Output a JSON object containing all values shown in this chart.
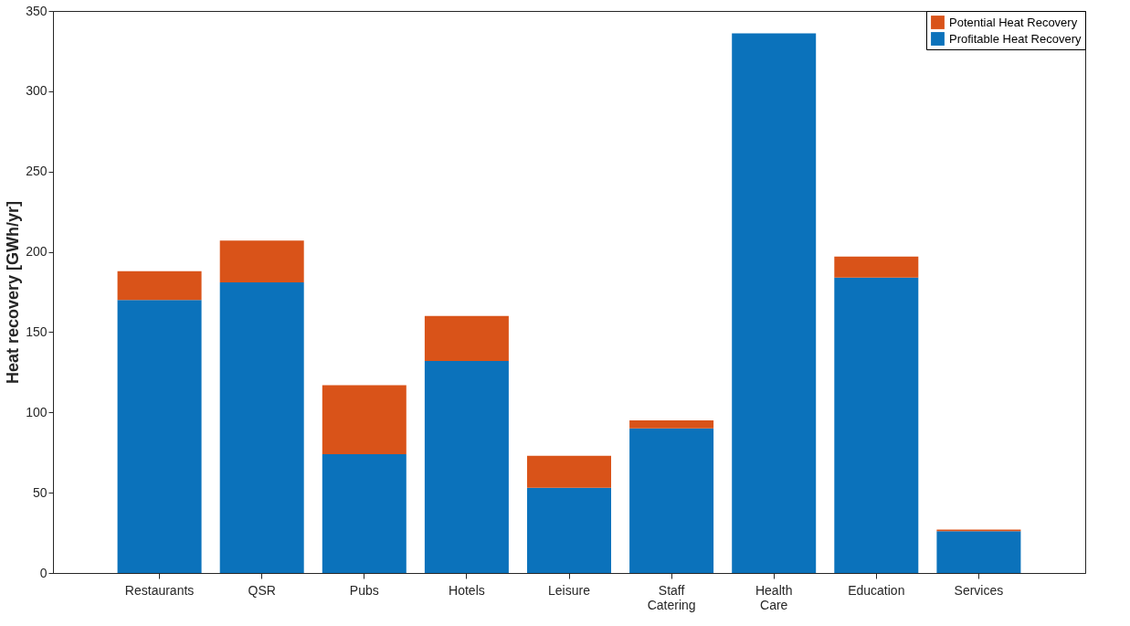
{
  "chart_data": {
    "type": "bar",
    "stacked": true,
    "categories": [
      "Restaurants",
      "QSR",
      "Pubs",
      "Hotels",
      "Leisure",
      "Staff Catering",
      "Health Care",
      "Education",
      "Services"
    ],
    "series": [
      {
        "name": "Profitable Heat Recovery",
        "color": "#0b72bb",
        "values": [
          170,
          181,
          74,
          132,
          53,
          90,
          336,
          184,
          26
        ]
      },
      {
        "name": "Potential Heat Recovery",
        "color": "#d95319",
        "values": [
          18,
          26,
          43,
          28,
          20,
          5,
          0,
          13,
          1
        ]
      }
    ],
    "ylabel": "Heat recovery [GWh/yr]",
    "ylim": [
      0,
      350
    ],
    "yticks": [
      0,
      50,
      100,
      150,
      200,
      250,
      300,
      350
    ],
    "grid": false,
    "legend": "top right"
  }
}
